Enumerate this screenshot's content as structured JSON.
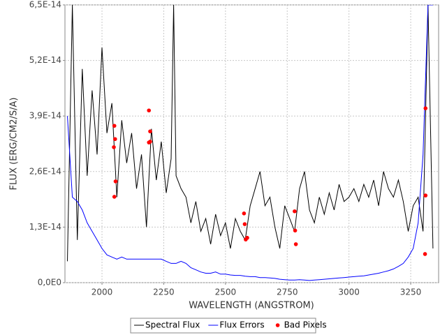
{
  "chart_data": {
    "type": "line",
    "xlabel": "WAVELENGTH (ANGSTROM)",
    "ylabel": "FLUX (ERG/CM2/S/A)",
    "xlim": [
      1850,
      3363
    ],
    "ylim": [
      0,
      6.5e-14
    ],
    "xticks": [
      2000,
      2250,
      2500,
      2750,
      3000,
      3250
    ],
    "yticks": [
      {
        "value": 0,
        "label": "0,0E0"
      },
      {
        "value": 1.3e-14,
        "label": "1,3E-14"
      },
      {
        "value": 2.6e-14,
        "label": "2,6E-14"
      },
      {
        "value": 3.9e-14,
        "label": "3,9E-14"
      },
      {
        "value": 5.2e-14,
        "label": "5,2E-14"
      },
      {
        "value": 6.5e-14,
        "label": "6,5E-14"
      }
    ],
    "grid": true,
    "legend": "bottom",
    "x": [
      1860,
      1880,
      1900,
      1920,
      1940,
      1960,
      1980,
      2000,
      2020,
      2040,
      2060,
      2080,
      2100,
      2120,
      2140,
      2160,
      2180,
      2200,
      2220,
      2240,
      2260,
      2280,
      2290,
      2300,
      2320,
      2340,
      2360,
      2380,
      2400,
      2420,
      2440,
      2460,
      2480,
      2500,
      2520,
      2540,
      2560,
      2580,
      2600,
      2620,
      2640,
      2660,
      2680,
      2700,
      2720,
      2740,
      2760,
      2780,
      2800,
      2820,
      2840,
      2860,
      2880,
      2900,
      2920,
      2940,
      2960,
      2980,
      3000,
      3020,
      3040,
      3060,
      3080,
      3100,
      3120,
      3140,
      3160,
      3180,
      3200,
      3220,
      3240,
      3260,
      3280,
      3300,
      3320,
      3340
    ],
    "series": [
      {
        "name": "Spectral Flux",
        "color": "#000000",
        "type": "line",
        "values": [
          5e-15,
          6.5e-14,
          1e-14,
          5e-14,
          2.5e-14,
          4.5e-14,
          3e-14,
          5.5e-14,
          3.5e-14,
          4.2e-14,
          2e-14,
          3.8e-14,
          2.8e-14,
          3.5e-14,
          2.2e-14,
          3e-14,
          1.3e-14,
          3.6e-14,
          2.4e-14,
          3.3e-14,
          2.1e-14,
          2.9e-14,
          6.5e-14,
          2.5e-14,
          2.2e-14,
          2e-14,
          1.4e-14,
          1.9e-14,
          1.2e-14,
          1.5e-14,
          9e-15,
          1.6e-14,
          1.1e-14,
          1.4e-14,
          8e-15,
          1.5e-14,
          1.2e-14,
          1e-14,
          1.8e-14,
          2.2e-14,
          2.6e-14,
          1.8e-14,
          2e-14,
          1.3e-14,
          8e-15,
          1.8e-14,
          1.5e-14,
          1.2e-14,
          2.2e-14,
          2.6e-14,
          1.7e-14,
          1.4e-14,
          2e-14,
          1.6e-14,
          2.1e-14,
          1.7e-14,
          2.3e-14,
          1.9e-14,
          2e-14,
          2.2e-14,
          1.9e-14,
          2.3e-14,
          2e-14,
          2.4e-14,
          1.8e-14,
          2.6e-14,
          2.2e-14,
          2e-14,
          2.4e-14,
          1.9e-14,
          1.2e-14,
          1.8e-14,
          2e-14,
          1.2e-14,
          6.5e-14,
          8e-15
        ]
      },
      {
        "name": "Flux Errors",
        "color": "#0000ff",
        "type": "line",
        "values": [
          3.9e-14,
          2e-14,
          1.9e-14,
          1.7e-14,
          1.4e-14,
          1.2e-14,
          1e-14,
          8e-15,
          6.5e-15,
          6e-15,
          5.5e-15,
          6e-15,
          5.5e-15,
          5.5e-15,
          5.5e-15,
          5.5e-15,
          5.5e-15,
          5.5e-15,
          5.5e-15,
          5.5e-15,
          5e-15,
          4.5e-15,
          4.5e-15,
          4.5e-15,
          5e-15,
          4.5e-15,
          3.5e-15,
          3e-15,
          2.5e-15,
          2.2e-15,
          2.2e-15,
          2.5e-15,
          2e-15,
          2e-15,
          1.8e-15,
          1.7e-15,
          1.7e-15,
          1.5e-15,
          1.4e-15,
          1.4e-15,
          1.2e-15,
          1.2e-15,
          1.1e-15,
          1e-15,
          8e-16,
          7e-16,
          6e-16,
          6e-16,
          7e-16,
          6e-16,
          5e-16,
          6e-16,
          7e-16,
          8e-16,
          9e-16,
          1e-15,
          1.1e-15,
          1.2e-15,
          1.3e-15,
          1.4e-15,
          1.5e-15,
          1.6e-15,
          1.8e-15,
          2e-15,
          2.2e-15,
          2.5e-15,
          2.8e-15,
          3.2e-15,
          3.8e-15,
          4.5e-15,
          6e-15,
          8e-15,
          1.4e-14,
          3e-14,
          6.5e-14,
          6.5e-14
        ]
      },
      {
        "name": "Bad Pixels",
        "color": "#ff0000",
        "type": "scatter",
        "x": [
          2048,
          2050,
          2053,
          2055,
          2050,
          2190,
          2195,
          2190,
          2195,
          2575,
          2578,
          2582,
          2588,
          2780,
          2782,
          2785,
          3310,
          3310,
          3308
        ],
        "values": [
          3.17e-14,
          3.67e-14,
          3.36e-14,
          2.37e-14,
          2.01e-14,
          4.03e-14,
          3.54e-14,
          3.28e-14,
          3.3e-14,
          1.62e-14,
          1.37e-14,
          1.01e-14,
          1.05e-14,
          1.67e-14,
          1.22e-14,
          9e-15,
          4.08e-14,
          2.04e-14,
          6.7e-15
        ]
      }
    ]
  }
}
